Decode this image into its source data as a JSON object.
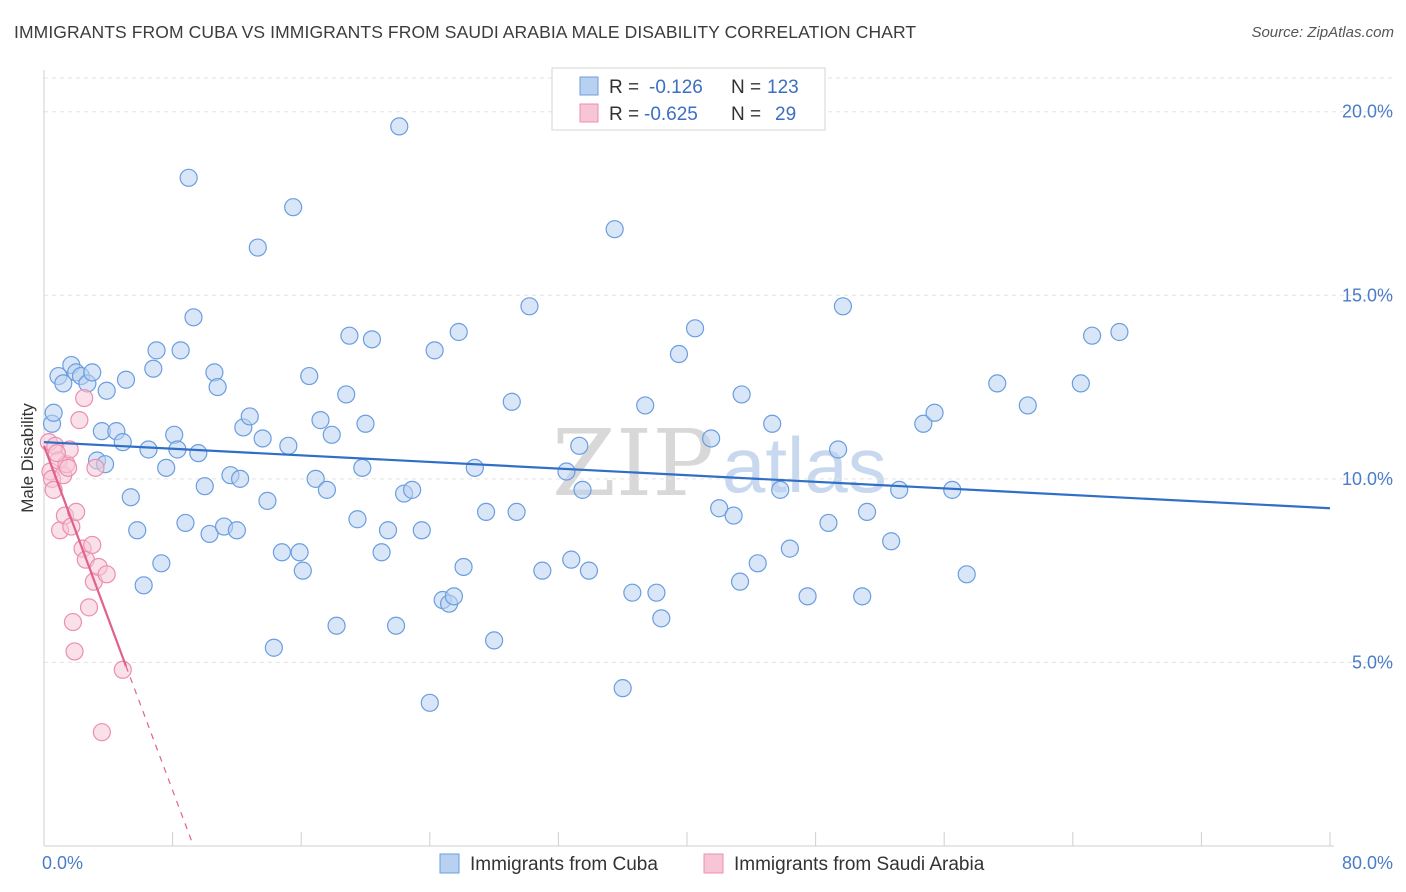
{
  "chart_data": {
    "type": "scatter",
    "title": "IMMIGRANTS FROM CUBA VS IMMIGRANTS FROM SAUDI ARABIA MALE DISABILITY CORRELATION CHART",
    "source": "Source: ZipAtlas.com",
    "xlabel": "",
    "ylabel": "Male Disability",
    "xlim": [
      0,
      80
    ],
    "ylim": [
      0,
      21
    ],
    "x_tick_labels": {
      "left": "0.0%",
      "right": "80.0%"
    },
    "y_ticks": [
      {
        "value": 5,
        "label": "5.0%"
      },
      {
        "value": 10,
        "label": "10.0%"
      },
      {
        "value": 15,
        "label": "15.0%"
      },
      {
        "value": 20,
        "label": "20.0%"
      }
    ],
    "watermark": {
      "part1": "ZIP",
      "part2": "atlas"
    },
    "legend": {
      "entries": [
        {
          "r_label": "R =",
          "r_value": "-0.126",
          "n_label": "N =",
          "n_value": "123"
        },
        {
          "r_label": "R =",
          "r_value": "-0.625",
          "n_label": "N =",
          "n_value": "29"
        }
      ]
    },
    "series": [
      {
        "name": "Immigrants from Cuba",
        "color": "#6a9ee0",
        "fill": "#b9d1f1",
        "trend": {
          "x1": 0,
          "y1": 11.0,
          "x2": 80,
          "y2": 9.2,
          "color": "#2f6fc7"
        },
        "points": [
          [
            0.5,
            11.5
          ],
          [
            0.6,
            11.8
          ],
          [
            0.9,
            12.8
          ],
          [
            1.2,
            12.6
          ],
          [
            1.7,
            13.1
          ],
          [
            2.0,
            12.9
          ],
          [
            2.3,
            12.8
          ],
          [
            2.7,
            12.6
          ],
          [
            3.0,
            12.9
          ],
          [
            3.3,
            10.5
          ],
          [
            3.6,
            11.3
          ],
          [
            3.8,
            10.4
          ],
          [
            3.9,
            12.4
          ],
          [
            4.5,
            11.3
          ],
          [
            4.9,
            11.0
          ],
          [
            5.1,
            12.7
          ],
          [
            5.4,
            9.5
          ],
          [
            5.8,
            8.6
          ],
          [
            6.2,
            7.1
          ],
          [
            6.5,
            10.8
          ],
          [
            6.8,
            13.0
          ],
          [
            7.0,
            13.5
          ],
          [
            7.3,
            7.7
          ],
          [
            7.6,
            10.3
          ],
          [
            8.1,
            11.2
          ],
          [
            8.3,
            10.8
          ],
          [
            8.5,
            13.5
          ],
          [
            8.8,
            8.8
          ],
          [
            9.0,
            18.2
          ],
          [
            9.3,
            14.4
          ],
          [
            9.6,
            10.7
          ],
          [
            10.0,
            9.8
          ],
          [
            10.3,
            8.5
          ],
          [
            10.6,
            12.9
          ],
          [
            10.8,
            12.5
          ],
          [
            11.2,
            8.7
          ],
          [
            11.6,
            10.1
          ],
          [
            12.0,
            8.6
          ],
          [
            12.2,
            10.0
          ],
          [
            12.4,
            11.4
          ],
          [
            12.8,
            11.7
          ],
          [
            13.3,
            16.3
          ],
          [
            13.6,
            11.1
          ],
          [
            13.9,
            9.4
          ],
          [
            14.3,
            5.4
          ],
          [
            14.8,
            8.0
          ],
          [
            15.2,
            10.9
          ],
          [
            15.5,
            17.4
          ],
          [
            15.9,
            8.0
          ],
          [
            16.1,
            7.5
          ],
          [
            16.5,
            12.8
          ],
          [
            16.9,
            10.0
          ],
          [
            17.2,
            11.6
          ],
          [
            17.6,
            9.7
          ],
          [
            17.9,
            11.2
          ],
          [
            18.2,
            6.0
          ],
          [
            18.8,
            12.3
          ],
          [
            19.0,
            13.9
          ],
          [
            19.5,
            8.9
          ],
          [
            19.8,
            10.3
          ],
          [
            20.0,
            11.5
          ],
          [
            20.4,
            13.8
          ],
          [
            21.0,
            8.0
          ],
          [
            21.4,
            8.6
          ],
          [
            21.9,
            6.0
          ],
          [
            22.1,
            19.6
          ],
          [
            22.4,
            9.6
          ],
          [
            22.9,
            9.7
          ],
          [
            23.5,
            8.6
          ],
          [
            24.0,
            3.9
          ],
          [
            24.3,
            13.5
          ],
          [
            24.8,
            6.7
          ],
          [
            25.2,
            6.6
          ],
          [
            25.5,
            6.8
          ],
          [
            25.8,
            14.0
          ],
          [
            26.1,
            7.6
          ],
          [
            26.8,
            10.3
          ],
          [
            27.5,
            9.1
          ],
          [
            28.0,
            5.6
          ],
          [
            29.1,
            12.1
          ],
          [
            29.4,
            9.1
          ],
          [
            30.2,
            14.7
          ],
          [
            31.0,
            7.5
          ],
          [
            32.5,
            10.2
          ],
          [
            32.8,
            7.8
          ],
          [
            33.3,
            10.9
          ],
          [
            33.5,
            9.7
          ],
          [
            33.9,
            7.5
          ],
          [
            35.5,
            16.8
          ],
          [
            36.0,
            4.3
          ],
          [
            36.6,
            6.9
          ],
          [
            37.4,
            12.0
          ],
          [
            38.1,
            6.9
          ],
          [
            38.4,
            6.2
          ],
          [
            39.5,
            13.4
          ],
          [
            40.5,
            14.1
          ],
          [
            41.5,
            11.1
          ],
          [
            42.0,
            9.2
          ],
          [
            42.9,
            9.0
          ],
          [
            43.3,
            7.2
          ],
          [
            43.4,
            12.3
          ],
          [
            44.4,
            7.7
          ],
          [
            45.3,
            11.5
          ],
          [
            45.8,
            9.7
          ],
          [
            46.4,
            8.1
          ],
          [
            47.5,
            6.8
          ],
          [
            48.8,
            8.8
          ],
          [
            49.4,
            10.8
          ],
          [
            49.7,
            14.7
          ],
          [
            50.9,
            6.8
          ],
          [
            51.2,
            9.1
          ],
          [
            52.7,
            8.3
          ],
          [
            53.2,
            9.7
          ],
          [
            54.7,
            11.5
          ],
          [
            55.4,
            11.8
          ],
          [
            56.5,
            9.7
          ],
          [
            57.4,
            7.4
          ],
          [
            59.3,
            12.6
          ],
          [
            61.2,
            12.0
          ],
          [
            64.5,
            12.6
          ],
          [
            65.2,
            13.9
          ],
          [
            66.9,
            14.0
          ]
        ]
      },
      {
        "name": "Immigrants from Saudi Arabia",
        "color": "#ec8fae",
        "fill": "#f6c6d6",
        "trend": {
          "x1": 0,
          "y1": 10.9,
          "x2": 5.1,
          "y2": 4.9,
          "color": "#e06090",
          "dash_x2": 9.3,
          "dash_y2": 0.0
        },
        "points": [
          [
            0.3,
            11.0
          ],
          [
            0.4,
            10.2
          ],
          [
            0.5,
            10.0
          ],
          [
            0.6,
            9.7
          ],
          [
            0.7,
            10.9
          ],
          [
            0.9,
            10.5
          ],
          [
            1.0,
            8.6
          ],
          [
            1.2,
            10.1
          ],
          [
            1.3,
            9.0
          ],
          [
            1.4,
            10.4
          ],
          [
            1.5,
            10.3
          ],
          [
            1.6,
            10.8
          ],
          [
            1.7,
            8.7
          ],
          [
            1.8,
            6.1
          ],
          [
            1.9,
            5.3
          ],
          [
            2.0,
            9.1
          ],
          [
            2.2,
            11.6
          ],
          [
            2.4,
            8.1
          ],
          [
            2.5,
            12.2
          ],
          [
            2.6,
            7.8
          ],
          [
            2.8,
            6.5
          ],
          [
            3.0,
            8.2
          ],
          [
            3.1,
            7.2
          ],
          [
            3.2,
            10.3
          ],
          [
            3.4,
            7.6
          ],
          [
            3.6,
            3.1
          ],
          [
            3.9,
            7.4
          ],
          [
            4.9,
            4.8
          ],
          [
            0.8,
            10.7
          ]
        ]
      }
    ]
  }
}
